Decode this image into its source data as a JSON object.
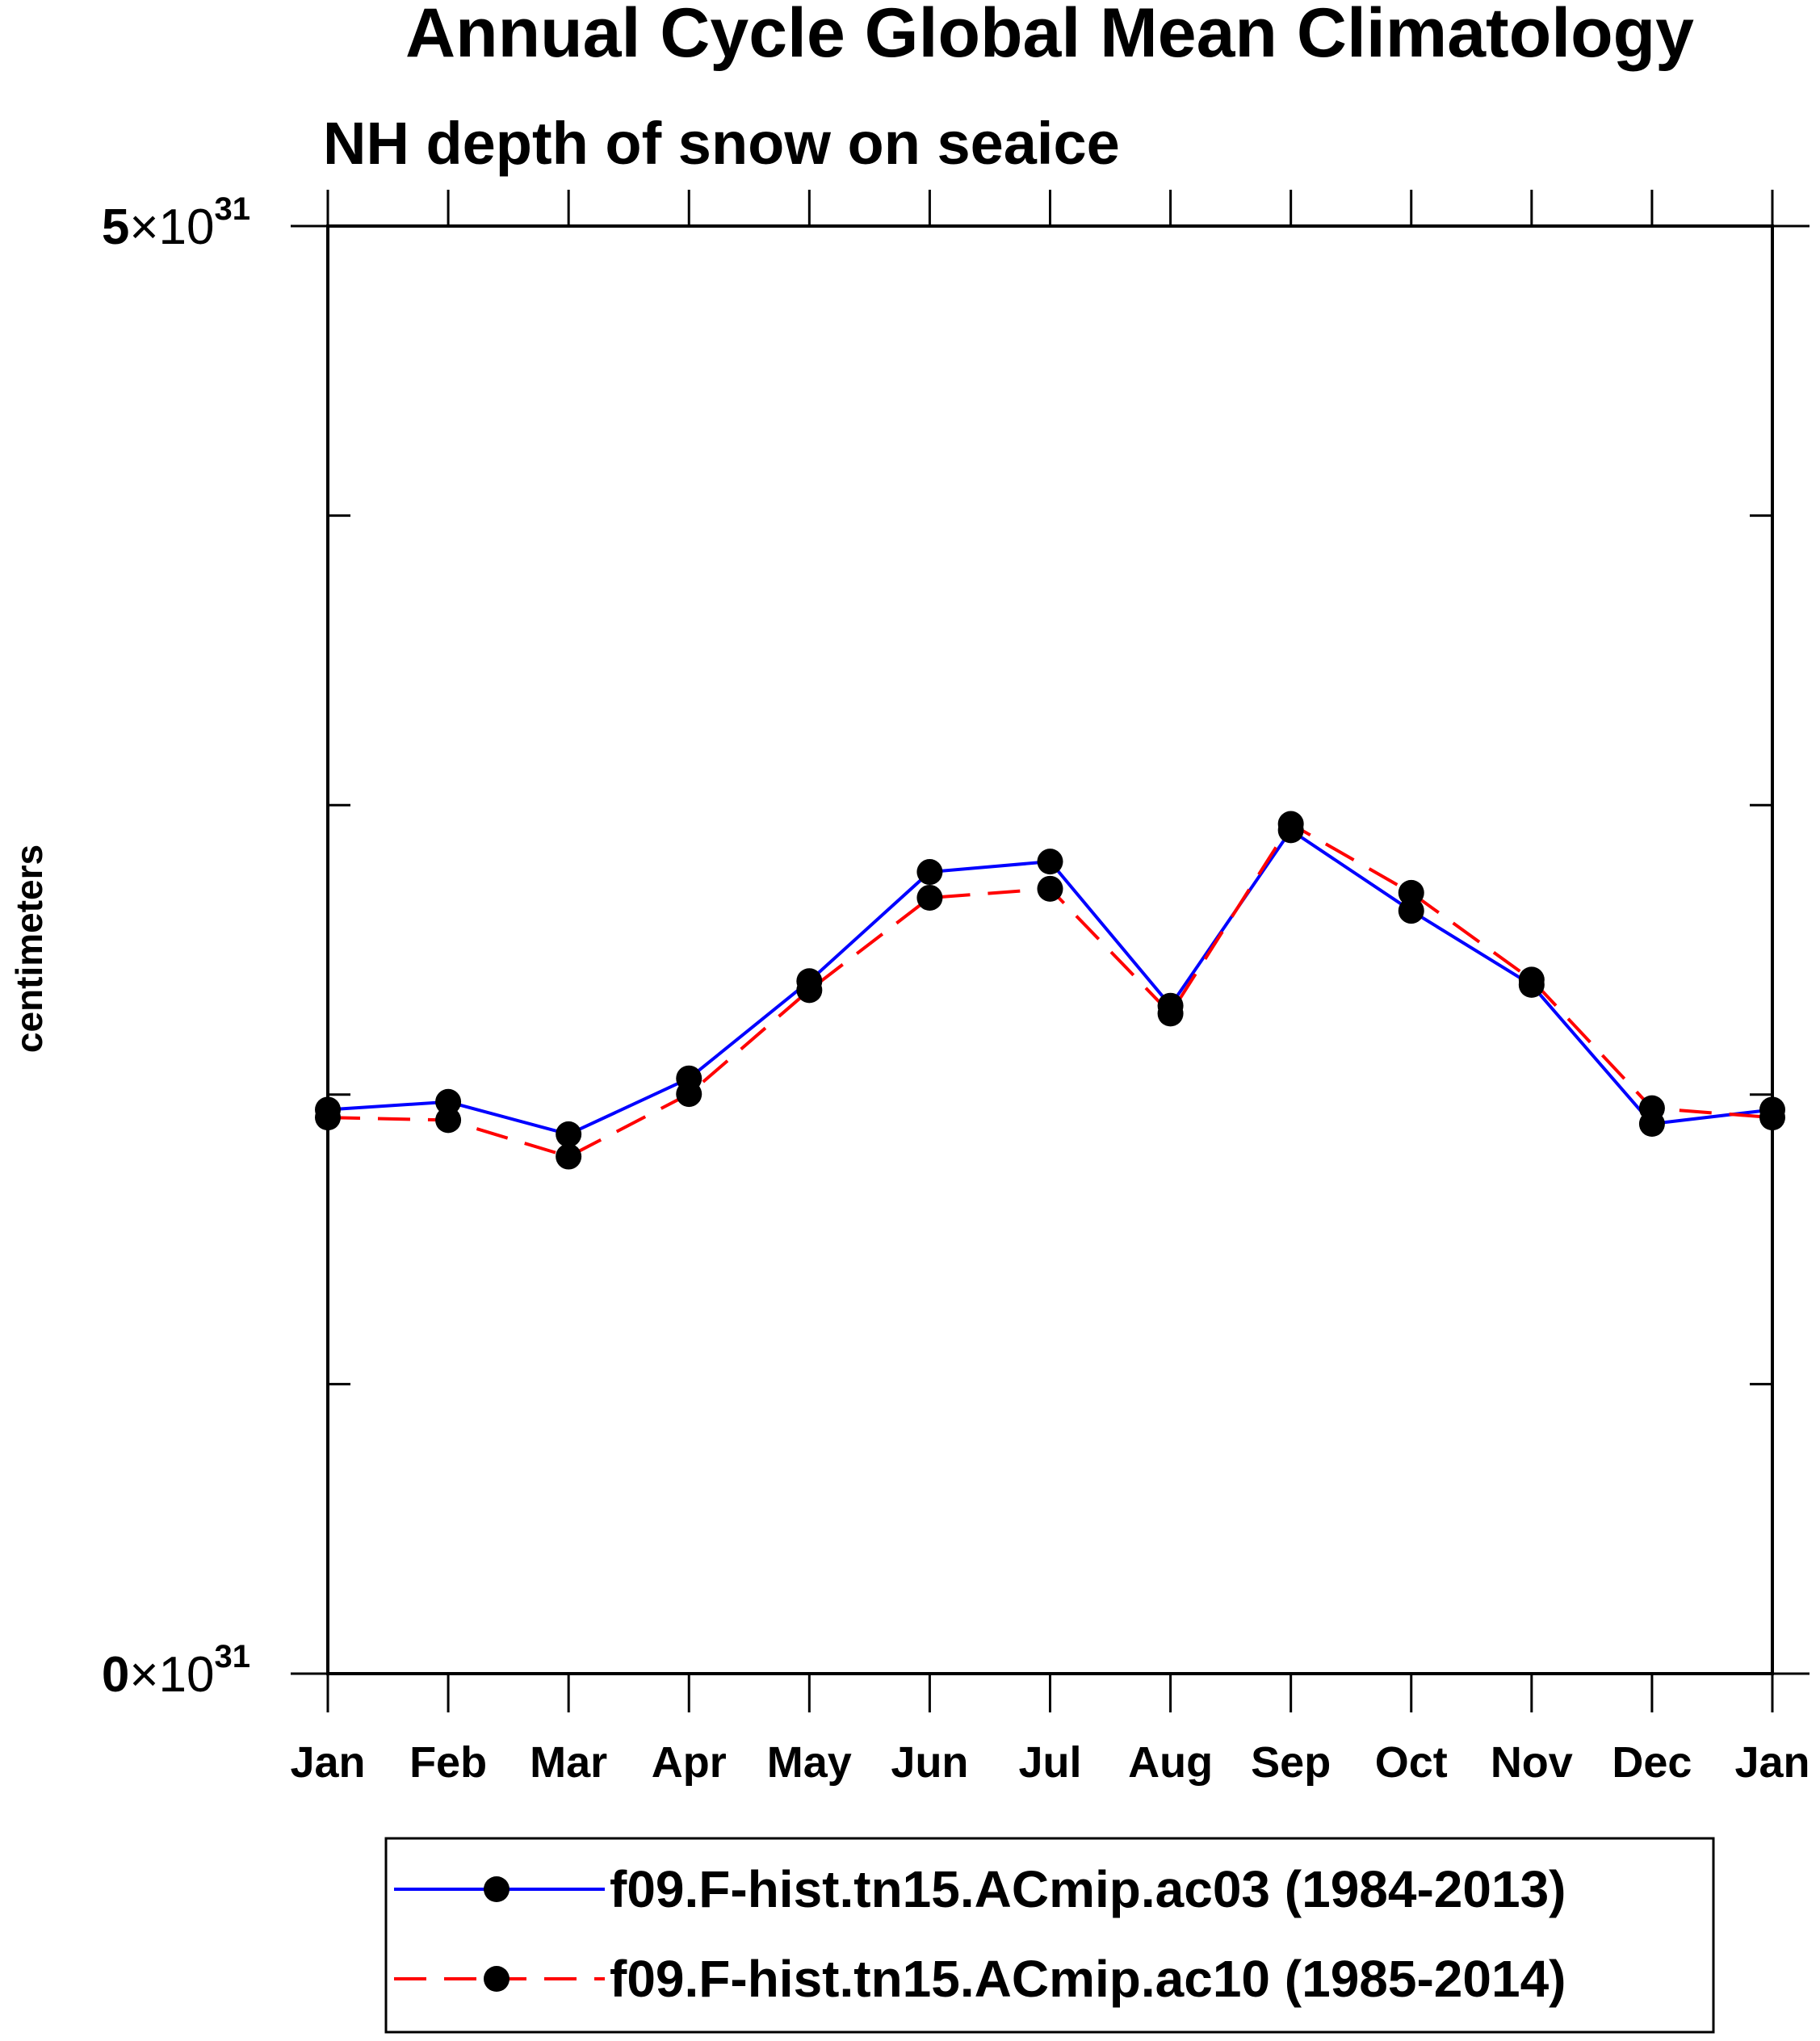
{
  "chart_data": {
    "type": "line",
    "title": "Annual Cycle Global Mean Climatology",
    "subtitle": "NH depth of snow on seaice",
    "xlabel": "",
    "ylabel": "centimeters",
    "categories": [
      "Jan",
      "Feb",
      "Mar",
      "Apr",
      "May",
      "Jun",
      "Jul",
      "Aug",
      "Sep",
      "Oct",
      "Nov",
      "Dec",
      "Jan"
    ],
    "ylim": [
      0,
      5e+31
    ],
    "y_tick_labels": [
      {
        "value": 5e+31,
        "mantissa": "5",
        "times": "×10",
        "exponent": "31"
      },
      {
        "value": 0,
        "mantissa": "0",
        "times": "×10",
        "exponent": "31"
      }
    ],
    "y_minor_ticks": [
      1e+31,
      2e+31,
      3e+31,
      4e+31
    ],
    "grid": false,
    "legend_placement": "bottom",
    "series": [
      {
        "name": "f09.F-hist.tn15.ACmip.ac03 (1984-2013)",
        "color": "#0000ff",
        "dash": "solid",
        "values": [
          1.948e+31,
          1.975e+31,
          1.863e+31,
          2.056e+31,
          2.392e+31,
          2.769e+31,
          2.805e+31,
          2.307e+31,
          2.913e+31,
          2.635e+31,
          2.379e+31,
          1.899e+31,
          1.948e+31
        ]
      },
      {
        "name": "f09.F-hist.tn15.ACmip.ac10 (1985-2014)",
        "color": "#ff0000",
        "dash": "dashed",
        "values": [
          1.921e+31,
          1.912e+31,
          1.786e+31,
          2.002e+31,
          2.361e+31,
          2.68e+31,
          2.711e+31,
          2.28e+31,
          2.935e+31,
          2.697e+31,
          2.397e+31,
          1.953e+31,
          1.921e+31
        ]
      }
    ]
  }
}
